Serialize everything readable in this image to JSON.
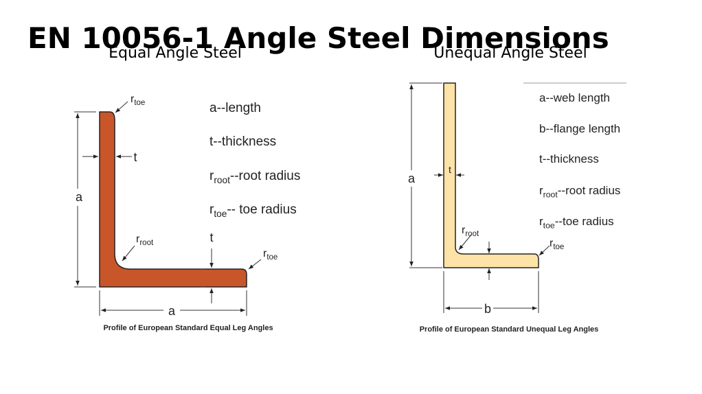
{
  "title": "EN 10056-1 Angle Steel Dimensions",
  "panels": [
    {
      "heading": "Equal Angle Steel",
      "legend": [
        {
          "text": "a--length"
        },
        {
          "text": "t--thickness"
        },
        {
          "symbol": "r",
          "sub": "root",
          "text": "--root radius"
        },
        {
          "symbol": "r",
          "sub": "toe",
          "text": "-- toe radius"
        }
      ],
      "labels": [
        {
          "symbol": "r",
          "sub": "toe"
        },
        {
          "symbol": "t"
        },
        {
          "symbol": "a"
        },
        {
          "symbol": "r",
          "sub": "root"
        },
        {
          "symbol": "t"
        },
        {
          "symbol": "r",
          "sub": "toe"
        },
        {
          "symbol": "a"
        }
      ],
      "caption": "Profile of European Standard Equal Leg Angles"
    },
    {
      "heading": "Unequal Angle Steel",
      "legend": [
        {
          "text": "a--web length"
        },
        {
          "text": "b--flange length"
        },
        {
          "text": "t--thickness"
        },
        {
          "symbol": "r",
          "sub": "root",
          "text": "--root radius"
        },
        {
          "symbol": "r",
          "sub": "toe",
          "text": "--toe radius"
        }
      ],
      "labels": [
        {
          "symbol": "a"
        },
        {
          "symbol": "t"
        },
        {
          "symbol": "r",
          "sub": "root"
        },
        {
          "symbol": "r",
          "sub": "toe"
        },
        {
          "symbol": "b"
        }
      ],
      "caption": "Profile of European Standard Unequal Leg Angles"
    }
  ]
}
